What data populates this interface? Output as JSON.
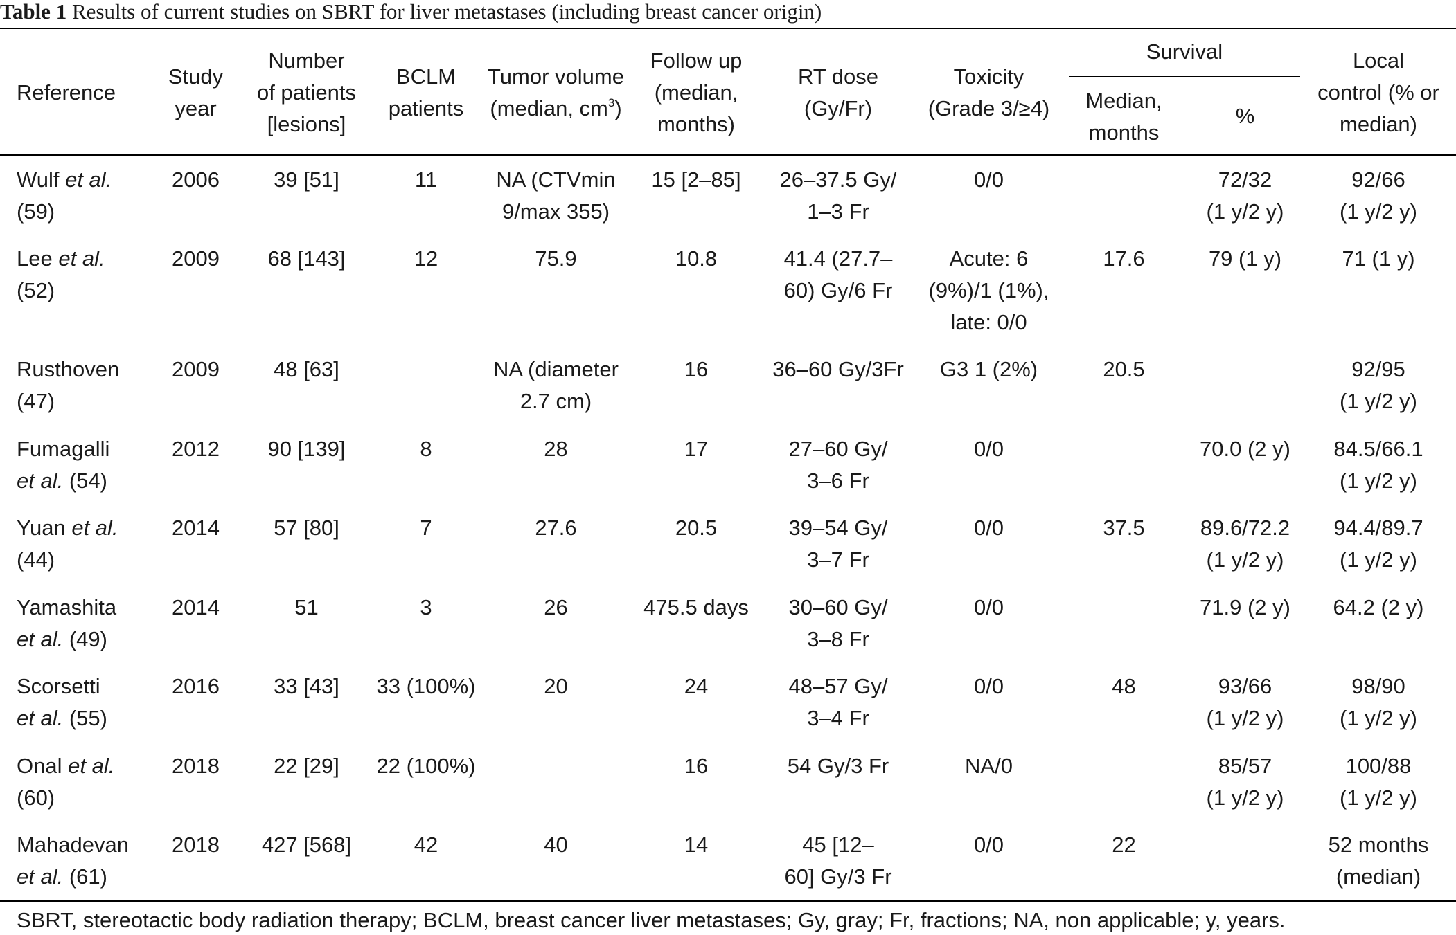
{
  "caption": {
    "label": "Table 1",
    "text": "Results of current studies on SBRT for liver metastases (including breast cancer origin)"
  },
  "header": {
    "reference": "Reference",
    "study_year": [
      "Study",
      "year"
    ],
    "patients": [
      "Number",
      "of patients",
      "[lesions]"
    ],
    "bclm": [
      "BCLM",
      "patients"
    ],
    "tumor_volume": [
      "Tumor volume",
      "(median, cm",
      "3",
      ")"
    ],
    "follow_up": [
      "Follow up",
      "(median,",
      "months)"
    ],
    "rt_dose": [
      "RT dose",
      "(Gy/Fr)"
    ],
    "toxicity": [
      "Toxicity",
      "(Grade 3/≥4)"
    ],
    "survival": "Survival",
    "survival_median": [
      "Median,",
      "months"
    ],
    "survival_pct": "%",
    "local_control": [
      "Local",
      "control (% or",
      "median)"
    ]
  },
  "rows": [
    {
      "ref_name": "Wulf",
      "ref_etal": "et al.",
      "ref_cite": "(59)",
      "ref_break": "after-etal",
      "year": "2006",
      "patients": "39 [51]",
      "bclm": "11",
      "tumor": [
        "NA (CTVmin",
        "9/max 355)"
      ],
      "follow": [
        "15 [2–85]"
      ],
      "dose": [
        "26–37.5 Gy/",
        "1–3 Fr"
      ],
      "tox": [
        "0/0"
      ],
      "median": "",
      "pct": [
        "72/32",
        "(1 y/2 y)"
      ],
      "lc": [
        "92/66",
        "(1 y/2 y)"
      ]
    },
    {
      "ref_name": "Lee",
      "ref_etal": "et al.",
      "ref_cite": "(52)",
      "ref_break": "after-etal",
      "year": "2009",
      "patients": "68 [143]",
      "bclm": "12",
      "tumor": [
        "75.9"
      ],
      "follow": [
        "10.8"
      ],
      "dose": [
        "41.4 (27.7–",
        "60) Gy/6 Fr"
      ],
      "tox": [
        "Acute: 6",
        "(9%)/1 (1%),",
        "late: 0/0"
      ],
      "median": "17.6",
      "pct": [
        "79 (1 y)"
      ],
      "lc": [
        "71 (1 y)"
      ]
    },
    {
      "ref_name": "Rusthoven",
      "ref_etal": "",
      "ref_cite": "(47)",
      "ref_break": "after-name",
      "year": "2009",
      "patients": "48 [63]",
      "bclm": "",
      "tumor": [
        "NA (diameter",
        "2.7 cm)"
      ],
      "follow": [
        "16"
      ],
      "dose": [
        "36–60 Gy/3Fr"
      ],
      "tox": [
        "G3 1 (2%)"
      ],
      "median": "20.5",
      "pct": [],
      "lc": [
        "92/95",
        "(1 y/2 y)"
      ]
    },
    {
      "ref_name": "Fumagalli",
      "ref_etal": "et al.",
      "ref_cite": "(54)",
      "ref_break": "after-name",
      "year": "2012",
      "patients": "90 [139]",
      "bclm": "8",
      "tumor": [
        "28"
      ],
      "follow": [
        "17"
      ],
      "dose": [
        "27–60 Gy/",
        "3–6 Fr"
      ],
      "tox": [
        "0/0"
      ],
      "median": "",
      "pct": [
        "70.0 (2 y)"
      ],
      "lc": [
        "84.5/66.1",
        "(1 y/2 y)"
      ]
    },
    {
      "ref_name": "Yuan",
      "ref_etal": "et al.",
      "ref_cite": "(44)",
      "ref_break": "after-etal",
      "year": "2014",
      "patients": "57 [80]",
      "bclm": "7",
      "tumor": [
        "27.6"
      ],
      "follow": [
        "20.5"
      ],
      "dose": [
        "39–54 Gy/",
        "3–7 Fr"
      ],
      "tox": [
        "0/0"
      ],
      "median": "37.5",
      "pct": [
        "89.6/72.2",
        "(1 y/2 y)"
      ],
      "lc": [
        "94.4/89.7",
        "(1 y/2 y)"
      ]
    },
    {
      "ref_name": "Yamashita",
      "ref_etal": "et al.",
      "ref_cite": "(49)",
      "ref_break": "after-name",
      "year": "2014",
      "patients": "51",
      "bclm": "3",
      "tumor": [
        "26"
      ],
      "follow": [
        "475.5 days"
      ],
      "dose": [
        "30–60 Gy/",
        "3–8 Fr"
      ],
      "tox": [
        "0/0"
      ],
      "median": "",
      "pct": [
        "71.9 (2 y)"
      ],
      "lc": [
        "64.2 (2 y)"
      ]
    },
    {
      "ref_name": "Scorsetti",
      "ref_etal": "et al.",
      "ref_cite": "(55)",
      "ref_break": "after-name",
      "year": "2016",
      "patients": "33 [43]",
      "bclm": "33 (100%)",
      "tumor": [
        "20"
      ],
      "follow": [
        "24"
      ],
      "dose": [
        "48–57 Gy/",
        "3–4 Fr"
      ],
      "tox": [
        "0/0"
      ],
      "median": "48",
      "pct": [
        "93/66",
        "(1 y/2 y)"
      ],
      "lc": [
        "98/90",
        "(1 y/2 y)"
      ]
    },
    {
      "ref_name": "Onal",
      "ref_etal": "et al.",
      "ref_cite": "(60)",
      "ref_break": "after-etal",
      "year": "2018",
      "patients": "22 [29]",
      "bclm": "22 (100%)",
      "tumor": [],
      "follow": [
        "16"
      ],
      "dose": [
        "54 Gy/3 Fr"
      ],
      "tox": [
        "NA/0"
      ],
      "median": "",
      "pct": [
        "85/57",
        "(1 y/2 y)"
      ],
      "lc": [
        "100/88",
        "(1 y/2 y)"
      ]
    },
    {
      "ref_name": "Mahadevan",
      "ref_etal": "et al.",
      "ref_cite": "(61)",
      "ref_break": "after-name",
      "year": "2018",
      "patients": "427 [568]",
      "bclm": "42",
      "tumor": [
        "40"
      ],
      "follow": [
        "14"
      ],
      "dose": [
        "45 [12–",
        "60] Gy/3 Fr"
      ],
      "tox": [
        "0/0"
      ],
      "median": "22",
      "pct": [],
      "lc": [
        "52 months",
        "(median)"
      ]
    }
  ],
  "footnote": "SBRT, stereotactic body radiation therapy; BCLM, breast cancer liver metastases; Gy, gray; Fr, fractions; NA, non applicable; y, years."
}
